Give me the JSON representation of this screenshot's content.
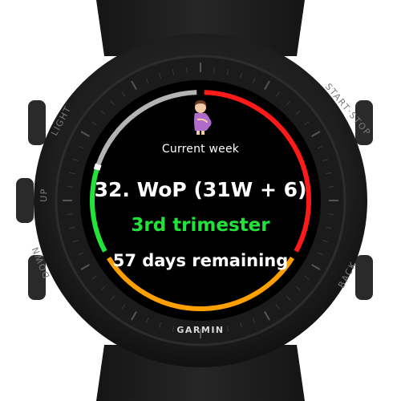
{
  "watch": {
    "brand": "GARMIN",
    "buttons": {
      "light": "LIGHT",
      "up": "UP",
      "down": "DOWN",
      "start_stop": "START·STOP",
      "back": "BACK"
    }
  },
  "screen": {
    "icon": "pregnant-woman-icon",
    "week_label": "Current week",
    "week_main": "32. WoP  (31W + 6)",
    "trimester": "3rd trimester",
    "days_remaining": "57 days remaining"
  },
  "progress": {
    "current_week_fraction": 0.8,
    "colors": {
      "first_trimester": "#ff1a1a",
      "second_trimester": "#ffa000",
      "third_trimester": "#22e33a",
      "remaining": "#b4b4b4",
      "marker": "#ffffff"
    }
  }
}
